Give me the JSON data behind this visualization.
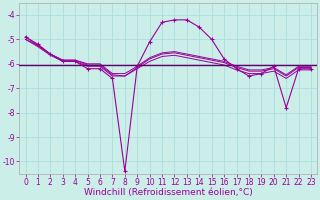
{
  "bg_color": "#cceee8",
  "grid_color": "#aadddd",
  "line_color": "#990099",
  "line_color2": "#660066",
  "xlabel": "Windchill (Refroidissement éolien,°C)",
  "xlabel_color": "#990099",
  "ylim": [
    -10.5,
    -3.5
  ],
  "xlim": [
    -0.5,
    23.5
  ],
  "yticks": [
    -10,
    -9,
    -8,
    -7,
    -6,
    -5,
    -4
  ],
  "xtick_labels": [
    "0",
    "1",
    "2",
    "3",
    "4",
    "5",
    "6",
    "7",
    "8",
    "9",
    "10",
    "11",
    "12",
    "13",
    "14",
    "15",
    "16",
    "17",
    "18",
    "19",
    "20",
    "21",
    "22",
    "23"
  ],
  "series_main": {
    "x": [
      0,
      1,
      2,
      3,
      4,
      5,
      6,
      7,
      8,
      9,
      10,
      11,
      12,
      13,
      14,
      15,
      16,
      17,
      18,
      19,
      20,
      21,
      22,
      23
    ],
    "y": [
      -4.9,
      -5.2,
      -5.6,
      -5.9,
      -5.9,
      -6.2,
      -6.2,
      -6.6,
      -10.4,
      -6.1,
      -5.1,
      -4.3,
      -4.2,
      -4.2,
      -4.5,
      -5.0,
      -5.8,
      -6.2,
      -6.5,
      -6.4,
      -6.1,
      -7.8,
      -6.2,
      -6.2
    ],
    "marker": "+"
  },
  "series_smooth": [
    {
      "x": [
        0,
        1,
        2,
        3,
        4,
        5,
        6,
        7,
        8,
        9,
        10,
        11,
        12,
        13,
        14,
        15,
        16,
        17,
        18,
        19,
        20,
        21,
        22,
        23
      ],
      "y": [
        -4.9,
        -5.25,
        -5.6,
        -5.85,
        -5.85,
        -6.05,
        -6.05,
        -6.45,
        -6.5,
        -6.15,
        -5.8,
        -5.6,
        -5.55,
        -5.65,
        -5.75,
        -5.85,
        -5.95,
        -6.15,
        -6.3,
        -6.3,
        -6.2,
        -6.5,
        -6.15,
        -6.15
      ]
    },
    {
      "x": [
        0,
        1,
        2,
        3,
        4,
        5,
        6,
        7,
        8,
        9,
        10,
        11,
        12,
        13,
        14,
        15,
        16,
        17,
        18,
        19,
        20,
        21,
        22,
        23
      ],
      "y": [
        -5.0,
        -5.3,
        -5.65,
        -5.9,
        -5.9,
        -6.1,
        -6.1,
        -6.5,
        -6.5,
        -6.2,
        -5.9,
        -5.7,
        -5.65,
        -5.75,
        -5.85,
        -5.95,
        -6.05,
        -6.25,
        -6.4,
        -6.4,
        -6.3,
        -6.6,
        -6.25,
        -6.25
      ]
    },
    {
      "x": [
        0,
        1,
        2,
        3,
        4,
        5,
        6,
        7,
        8,
        9,
        10,
        11,
        12,
        13,
        14,
        15,
        16,
        17,
        18,
        19,
        20,
        21,
        22,
        23
      ],
      "y": [
        -5.0,
        -5.25,
        -5.6,
        -5.85,
        -5.85,
        -6.0,
        -6.0,
        -6.4,
        -6.4,
        -6.1,
        -5.75,
        -5.55,
        -5.5,
        -5.6,
        -5.7,
        -5.8,
        -5.9,
        -6.1,
        -6.25,
        -6.25,
        -6.15,
        -6.45,
        -6.1,
        -6.1
      ]
    }
  ],
  "hline_y": -6.05,
  "font_size_tick": 5.5,
  "font_size_xlabel": 6.5
}
